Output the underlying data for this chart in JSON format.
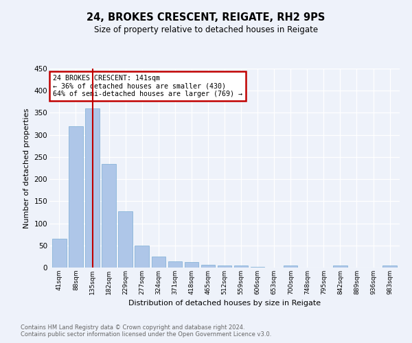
{
  "title1": "24, BROKES CRESCENT, REIGATE, RH2 9PS",
  "title2": "Size of property relative to detached houses in Reigate",
  "xlabel": "Distribution of detached houses by size in Reigate",
  "ylabel": "Number of detached properties",
  "bar_labels": [
    "41sqm",
    "88sqm",
    "135sqm",
    "182sqm",
    "229sqm",
    "277sqm",
    "324sqm",
    "371sqm",
    "418sqm",
    "465sqm",
    "512sqm",
    "559sqm",
    "606sqm",
    "653sqm",
    "700sqm",
    "748sqm",
    "795sqm",
    "842sqm",
    "889sqm",
    "936sqm",
    "983sqm"
  ],
  "bar_values": [
    65,
    320,
    360,
    235,
    127,
    49,
    25,
    14,
    12,
    6,
    4,
    4,
    1,
    0,
    5,
    0,
    0,
    4,
    0,
    0,
    4
  ],
  "bar_color": "#aec6e8",
  "bar_edge_color": "#7aadd4",
  "highlight_bar_index": 2,
  "highlight_color": "#c00000",
  "annotation_line1": "24 BROKES CRESCENT: 141sqm",
  "annotation_line2": "← 36% of detached houses are smaller (430)",
  "annotation_line3": "64% of semi-detached houses are larger (769) →",
  "annotation_box_color": "#c00000",
  "background_color": "#eef2fa",
  "grid_color": "#ffffff",
  "footer1": "Contains HM Land Registry data © Crown copyright and database right 2024.",
  "footer2": "Contains public sector information licensed under the Open Government Licence v3.0.",
  "ylim": [
    0,
    450
  ],
  "yticks": [
    0,
    50,
    100,
    150,
    200,
    250,
    300,
    350,
    400,
    450
  ]
}
